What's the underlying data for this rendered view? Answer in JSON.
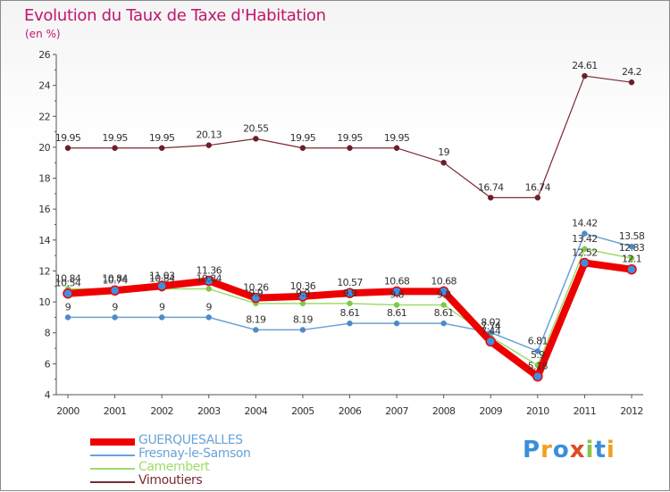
{
  "chart_data": {
    "type": "line",
    "title": "Evolution du Taux de Taxe d'Habitation",
    "unit_label": "(en %)",
    "x": [
      "2000",
      "2001",
      "2002",
      "2003",
      "2004",
      "2005",
      "2006",
      "2007",
      "2008",
      "2009",
      "2010",
      "2011",
      "2012"
    ],
    "ylim": [
      4,
      26
    ],
    "yticks": [
      4,
      6,
      8,
      10,
      12,
      14,
      16,
      18,
      20,
      22,
      24,
      26
    ],
    "grid": false,
    "legend_position": "bottom-left",
    "series": [
      {
        "name": "GUERQUESALLES",
        "color": "#ee0000",
        "point_color": "#3f8fe0",
        "width": 8,
        "values": [
          10.54,
          10.74,
          11.03,
          11.36,
          10.26,
          10.36,
          10.57,
          10.68,
          10.68,
          7.44,
          5.18,
          12.52,
          12.1
        ],
        "labels": [
          "10.54",
          "10.74",
          "11.03",
          "11.36",
          "10.26",
          "10.36",
          "10.57",
          "10.68",
          "10.68",
          "7.44",
          "5.18",
          "12.52",
          "12.1"
        ]
      },
      {
        "name": "Fresnay-le-Samson",
        "color": "#6aa3d6",
        "point_color": "#4f8ac8",
        "width": 1.5,
        "values": [
          9,
          9,
          9,
          9,
          8.19,
          8.19,
          8.61,
          8.61,
          8.61,
          8.02,
          6.81,
          14.42,
          13.58
        ],
        "labels": [
          "9",
          "9",
          "9",
          "9",
          "8.19",
          "8.19",
          "8.61",
          "8.61",
          "8.61",
          "8.02",
          "6.81",
          "14.42",
          "13.58"
        ]
      },
      {
        "name": "Camembert",
        "color": "#9edc6a",
        "point_color": "#7fc94a",
        "width": 1.5,
        "values": [
          10.84,
          10.84,
          10.84,
          10.84,
          9.9,
          9.9,
          9.9,
          9.8,
          9.8,
          7.74,
          5.9,
          13.42,
          12.83
        ],
        "labels": [
          "10.84",
          "10.84",
          "10.84",
          "10.84",
          "9.9",
          "9.9",
          "9.9",
          "9.8",
          "9.8",
          "7.74",
          "5.9",
          "13.42",
          "12.83"
        ]
      },
      {
        "name": "Vimoutiers",
        "color": "#7a2a32",
        "point_color": "#6b1f28",
        "width": 1.2,
        "values": [
          19.95,
          19.95,
          19.95,
          20.13,
          20.55,
          19.95,
          19.95,
          19.95,
          19,
          16.74,
          16.74,
          24.61,
          24.2
        ],
        "labels": [
          "19.95",
          "19.95",
          "19.95",
          "20.13",
          "20.55",
          "19.95",
          "19.95",
          "19.95",
          "19",
          "16.74",
          "16.74",
          "24.61",
          "24.2"
        ]
      }
    ]
  },
  "legend": {
    "items": [
      "GUERQUESALLES",
      "Fresnay-le-Samson",
      "Camembert",
      "Vimoutiers"
    ]
  },
  "logo": {
    "text": "Proxiti",
    "letter_colors": [
      "#3a8fd8",
      "#f0a020",
      "#3a8fd8",
      "#e04a20",
      "#8bc34a",
      "#3a8fd8",
      "#f0a020"
    ]
  }
}
